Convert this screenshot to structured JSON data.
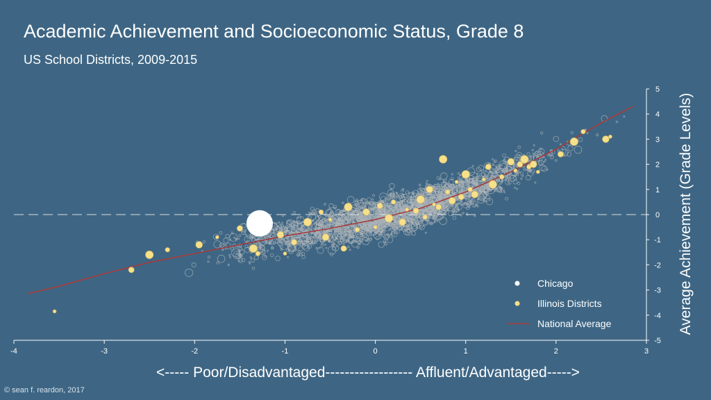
{
  "header": {
    "title": "Academic Achievement and Socioeconomic Status, Grade 8",
    "subtitle": "US School Districts, 2009-2015"
  },
  "footer": {
    "copyright": "© sean f. reardon, 2017"
  },
  "colors": {
    "background": "#3e6684",
    "districts": "#aeb4b8",
    "illinois": "#f7e08a",
    "chicago": "#ffffff",
    "national_average": "#a83a3a",
    "reference_line": "#d9dde0"
  },
  "chart_data": {
    "type": "scatter",
    "title": "Academic Achievement and Socioeconomic Status, Grade 8",
    "subtitle": "US School Districts, 2009-2015",
    "xlabel": "<----- Poor/Disadvantaged------------------ Affluent/Advantaged----->",
    "ylabel": "Average Achievement (Grade Levels)",
    "xlim": [
      -4,
      3
    ],
    "ylim": [
      -5,
      5
    ],
    "xticks": [
      -4,
      -3,
      -2,
      -1,
      0,
      1,
      2,
      3
    ],
    "yticks": [
      5,
      4,
      3,
      2,
      1,
      0,
      -1,
      -2,
      -3,
      -4,
      -5
    ],
    "reference_line": {
      "y": 0,
      "style": "dashed"
    },
    "grid": false,
    "legend": {
      "placement": "bottom-right",
      "entries": [
        "Chicago",
        "Illinois Districts",
        "National Average"
      ]
    },
    "series": [
      {
        "name": "Chicago",
        "points": [
          {
            "x": -1.28,
            "y": -0.35
          }
        ]
      },
      {
        "name": "Illinois Districts",
        "points": [
          {
            "x": -3.55,
            "y": -3.85
          },
          {
            "x": -2.7,
            "y": -2.2
          },
          {
            "x": -2.5,
            "y": -1.6
          },
          {
            "x": -2.3,
            "y": -1.4
          },
          {
            "x": -1.95,
            "y": -1.2
          },
          {
            "x": -1.75,
            "y": -0.9
          },
          {
            "x": -1.5,
            "y": -0.55
          },
          {
            "x": -1.35,
            "y": -1.35
          },
          {
            "x": -1.3,
            "y": -1.55
          },
          {
            "x": -1.05,
            "y": -0.8
          },
          {
            "x": -1.0,
            "y": -1.55
          },
          {
            "x": -0.9,
            "y": -1.1
          },
          {
            "x": -0.75,
            "y": -0.3
          },
          {
            "x": -0.6,
            "y": 0.1
          },
          {
            "x": -0.55,
            "y": -0.9
          },
          {
            "x": -0.5,
            "y": -0.2
          },
          {
            "x": -0.35,
            "y": -1.35
          },
          {
            "x": -0.3,
            "y": 0.3
          },
          {
            "x": -0.2,
            "y": -0.6
          },
          {
            "x": -0.1,
            "y": 0.1
          },
          {
            "x": 0.0,
            "y": -0.5
          },
          {
            "x": 0.05,
            "y": 0.35
          },
          {
            "x": 0.15,
            "y": -0.15
          },
          {
            "x": 0.2,
            "y": 0.5
          },
          {
            "x": 0.3,
            "y": -0.3
          },
          {
            "x": 0.35,
            "y": 0.2
          },
          {
            "x": 0.45,
            "y": 0.15
          },
          {
            "x": 0.5,
            "y": 0.6
          },
          {
            "x": 0.55,
            "y": -0.1
          },
          {
            "x": 0.6,
            "y": 1.0
          },
          {
            "x": 0.65,
            "y": 0.4
          },
          {
            "x": 0.7,
            "y": 0.3
          },
          {
            "x": 0.75,
            "y": 2.2
          },
          {
            "x": 0.8,
            "y": 0.9
          },
          {
            "x": 0.85,
            "y": 0.55
          },
          {
            "x": 0.9,
            "y": 1.3
          },
          {
            "x": 0.95,
            "y": 0.7
          },
          {
            "x": 1.0,
            "y": 1.6
          },
          {
            "x": 1.05,
            "y": 1.0
          },
          {
            "x": 1.1,
            "y": 0.8
          },
          {
            "x": 1.2,
            "y": 1.4
          },
          {
            "x": 1.25,
            "y": 1.9
          },
          {
            "x": 1.3,
            "y": 1.2
          },
          {
            "x": 1.4,
            "y": 1.5
          },
          {
            "x": 1.5,
            "y": 2.1
          },
          {
            "x": 1.55,
            "y": 1.75
          },
          {
            "x": 1.6,
            "y": 2.0
          },
          {
            "x": 1.65,
            "y": 2.2
          },
          {
            "x": 1.7,
            "y": 1.9
          },
          {
            "x": 1.75,
            "y": 2.0
          },
          {
            "x": 1.8,
            "y": 1.7
          },
          {
            "x": 2.05,
            "y": 2.4
          },
          {
            "x": 2.2,
            "y": 2.9
          },
          {
            "x": 2.3,
            "y": 3.3
          },
          {
            "x": 2.55,
            "y": 3.0
          },
          {
            "x": 2.6,
            "y": 3.1
          }
        ]
      },
      {
        "name": "National Average",
        "type": "line",
        "x": [
          -3.85,
          -3.5,
          -3.0,
          -2.5,
          -2.0,
          -1.5,
          -1.0,
          -0.5,
          0.0,
          0.5,
          1.0,
          1.5,
          2.0,
          2.5,
          2.85
        ],
        "y": [
          -3.15,
          -2.85,
          -2.35,
          -1.9,
          -1.55,
          -1.2,
          -0.85,
          -0.55,
          -0.2,
          0.25,
          0.9,
          1.7,
          2.6,
          3.65,
          4.3
        ]
      }
    ]
  }
}
